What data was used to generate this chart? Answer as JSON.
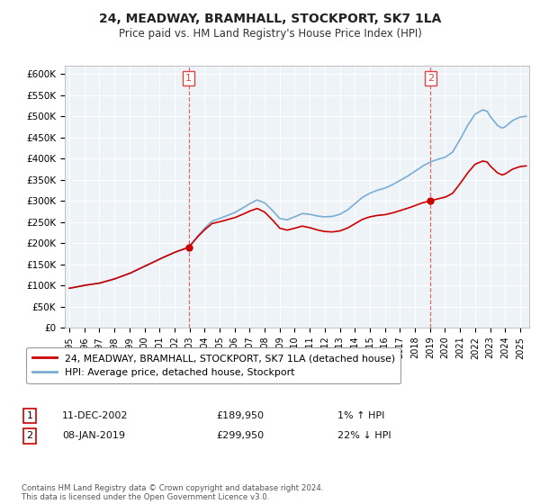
{
  "title": "24, MEADWAY, BRAMHALL, STOCKPORT, SK7 1LA",
  "subtitle": "Price paid vs. HM Land Registry's House Price Index (HPI)",
  "ylabel_ticks": [
    "£0",
    "£50K",
    "£100K",
    "£150K",
    "£200K",
    "£250K",
    "£300K",
    "£350K",
    "£400K",
    "£450K",
    "£500K",
    "£550K",
    "£600K"
  ],
  "ylim": [
    0,
    620000
  ],
  "ytick_vals": [
    0,
    50000,
    100000,
    150000,
    200000,
    250000,
    300000,
    350000,
    400000,
    450000,
    500000,
    550000,
    600000
  ],
  "sale1_year": 2002.95,
  "sale1_price": 189950,
  "sale2_year": 2019.03,
  "sale2_price": 299950,
  "legend_line1": "24, MEADWAY, BRAMHALL, STOCKPORT, SK7 1LA (detached house)",
  "legend_line2": "HPI: Average price, detached house, Stockport",
  "annotation1": [
    "1",
    "11-DEC-2002",
    "£189,950",
    "1% ↑ HPI"
  ],
  "annotation2": [
    "2",
    "08-JAN-2019",
    "£299,950",
    "22% ↓ HPI"
  ],
  "footer": "Contains HM Land Registry data © Crown copyright and database right 2024.\nThis data is licensed under the Open Government Licence v3.0.",
  "line_color_red": "#cc0000",
  "line_color_blue": "#7aadd4",
  "vline_color": "#dd4444",
  "plot_bg_color": "#eef3f8",
  "background_color": "#ffffff",
  "grid_color": "#ffffff"
}
